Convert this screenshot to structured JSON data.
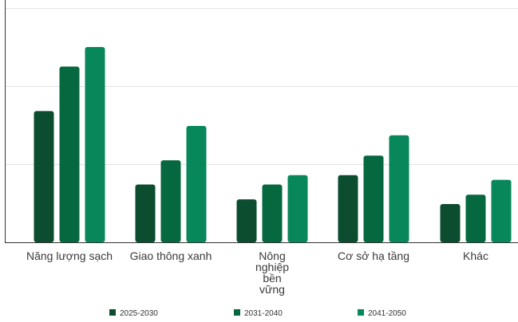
{
  "chart_data": {
    "type": "bar",
    "title": "",
    "xlabel": "",
    "ylabel": "",
    "ylim": [
      0,
      3
    ],
    "grid": true,
    "legend_position": "bottom",
    "categories": [
      [
        "Năng lượng sạch"
      ],
      [
        "Giao thông xanh"
      ],
      [
        "Nông",
        "nghiệp",
        "bền",
        "vững"
      ],
      [
        "Cơ sở hạ tầng"
      ],
      [
        "Khác"
      ]
    ],
    "series": [
      {
        "name": "2025-2030",
        "color": "#0b4d2e",
        "values": [
          1.68,
          0.74,
          0.55,
          0.86,
          0.49
        ]
      },
      {
        "name": "2031-2040",
        "color": "#06683f",
        "values": [
          2.25,
          1.05,
          0.74,
          1.11,
          0.61
        ]
      },
      {
        "name": "2041-2050",
        "color": "#07875a",
        "values": [
          2.5,
          1.49,
          0.86,
          1.37,
          0.8
        ]
      }
    ]
  }
}
